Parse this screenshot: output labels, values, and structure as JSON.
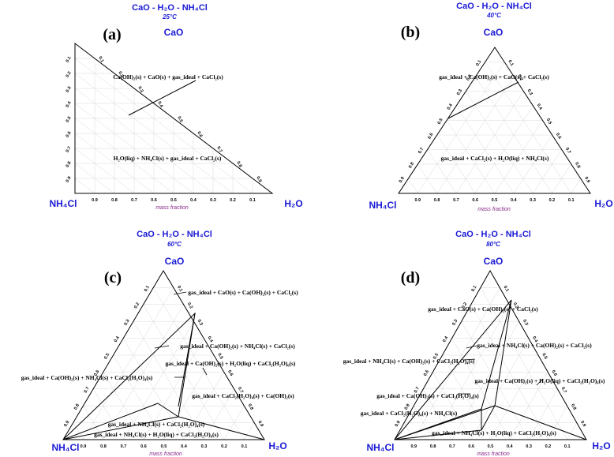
{
  "figure": {
    "mass_fraction_label": "mass fraction",
    "ticks": [
      "0.9",
      "0.8",
      "0.7",
      "0.6",
      "0.5",
      "0.4",
      "0.3",
      "0.2",
      "0.1"
    ],
    "vertices": {
      "top": "CaO",
      "left": "NH₄Cl",
      "right": "H₂O"
    },
    "panels": [
      {
        "id": "a",
        "label": "(a)",
        "title": "CaO - H₂O - NH₄Cl",
        "temperature": "25°C",
        "regions": [
          "Ca(OH)₂(s) + CaO(s) + gas_ideal + CaCl₂(s)",
          "H₂O(liq) + NH₄Cl(s)  + gas_ideal + CaCl₂(s)"
        ]
      },
      {
        "id": "b",
        "label": "(b)",
        "title": "CaO - H₂O - NH₄Cl",
        "temperature": "40°C",
        "regions": [
          "gas_ideal + Ca(OH)₂(s) + CaO(s) + CaCl₂(s)",
          "gas_ideal + CaCl₂(s) + H₂O(liq) + NH₄Cl(s)"
        ]
      },
      {
        "id": "c",
        "label": "(c)",
        "title": "CaO - H₂O - NH₄Cl",
        "temperature": "60°C",
        "regions": [
          "gas_ideal + CaO(s) + Ca(OH)₂(s) + CaCl₂(s)",
          "gas_ideal + Ca(OH)₂(s) + NH₄Cl(s) + CaCl₂(s)",
          "gas_ideal + Ca(OH)₂(s) + H₂O(liq) + CaCl₂(H₂O)₆(s)",
          "gas_ideal + Ca(OH)₂(s) + NH₄Cl(s) + CaCl₂(H₂O)₄(s)",
          "gas_ideal + CaCl₂(H₂O)₄(s) + Ca(OH)₂(s)",
          "gas_ideal + NH₄Cl(s) + CaCl₂(H₂O)₄(s)",
          "gas_ideal + NH₄Cl(s) + H₂O(liq) + CaCl₂(H₂O)₆(s)"
        ]
      },
      {
        "id": "d",
        "label": "(d)",
        "title": "CaO - H₂O - NH₄Cl",
        "temperature": "80°C",
        "regions": [
          "gas_ideal + CaO(s) + Ca(OH)₂(s) + CaCl₂(s)",
          "gas_ideal + NH₄Cl(s) + Ca(OH)₂(s) + CaCl₂(s)",
          "gas_ideal + NH₄Cl(s) + Ca(OH)₂(s) + CaCl₂(H₂O)₄(s)",
          "gas_ideal + Ca(OH)₂(s) + H₂O(liq) + CaCl₂(H₂O)₆(s)",
          "gas_ideal + Ca(OH)₂(s) + CaCl₂(H₂O)₄(s)",
          "gas_ideal + CaCl₂(H₂O)₄(s) + NH₄Cl(s)",
          "gas_ideal + NH₄Cl(s) + H₂O(liq) + CaCl₂(H₂O)₆(s)"
        ]
      }
    ]
  }
}
